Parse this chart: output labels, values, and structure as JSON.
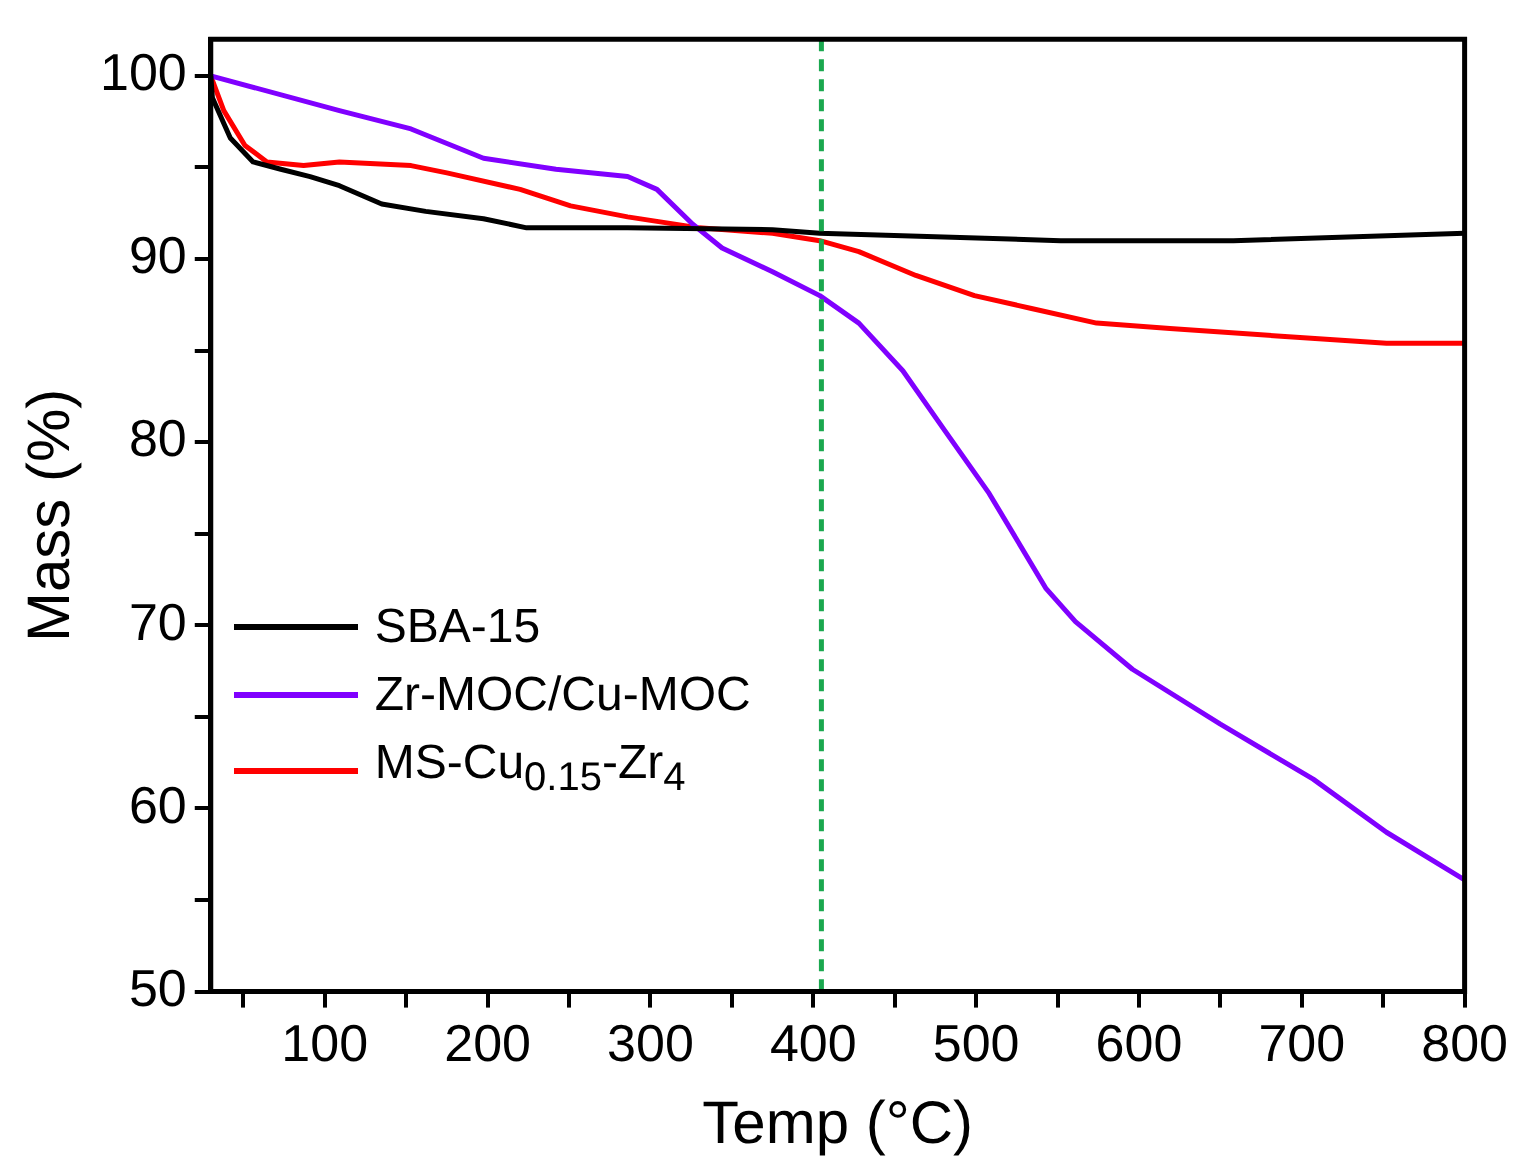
{
  "chart_data": {
    "type": "line",
    "xlabel": "Temp (°C)",
    "ylabel": "Mass (%)",
    "x": [
      30,
      38,
      51,
      64.5,
      87,
      109,
      131,
      153,
      175,
      220,
      251,
      286,
      330,
      375,
      404,
      428,
      463,
      499,
      534,
      574,
      619,
      685,
      752,
      800
    ],
    "series": [
      {
        "name": "SBA-15",
        "color": "#000000",
        "x": [
          30,
          31,
          42,
          56,
          73,
          91,
          109,
          135,
          162,
          197.5,
          224,
          286,
          375,
          404,
          552,
          658,
          800
        ],
        "values": [
          100,
          98.8,
          96.6,
          95.3,
          94.9,
          94.5,
          94.0,
          93.0,
          92.6,
          92.2,
          91.7,
          91.7,
          91.6,
          91.4,
          91.0,
          91.0,
          91.4
        ]
      },
      {
        "name": "Zr-MOC/Cu-MOC",
        "color": "#8000ff",
        "x": [
          30,
          109,
          153,
          197.5,
          242,
          286,
          304,
          326,
          344,
          375,
          404,
          428,
          455,
          481,
          508,
          543,
          561,
          596,
          650,
          707,
          752,
          800
        ],
        "values": [
          100,
          98.1,
          97.1,
          95.5,
          94.9,
          94.5,
          93.8,
          91.9,
          90.6,
          89.3,
          88.0,
          86.5,
          83.9,
          80.6,
          77.2,
          72.0,
          70.2,
          67.6,
          64.6,
          61.6,
          58.7,
          56.1
        ]
      },
      {
        "name": "MS-Cu$_{0.15}$-Zr$_{4}$",
        "color": "#ff0000",
        "values": [
          100,
          98.1,
          96.2,
          95.3,
          95.1,
          95.3,
          95.2,
          95.1,
          94.7,
          93.8,
          92.9,
          92.3,
          91.7,
          91.4,
          91.0,
          90.4,
          89.1,
          88.0,
          87.3,
          86.5,
          86.2,
          85.8,
          85.4,
          85.4
        ]
      }
    ],
    "xlim": [
      30,
      800
    ],
    "xticks": [
      {
        "value": 50,
        "label": null
      },
      100,
      {
        "value": 150,
        "label": null
      },
      200,
      {
        "value": 250,
        "label": null
      },
      300,
      {
        "value": 350,
        "label": null
      },
      400,
      {
        "value": 450,
        "label": null
      },
      500,
      {
        "value": 550,
        "label": null
      },
      600,
      {
        "value": 650,
        "label": null
      },
      700,
      {
        "value": 750,
        "label": null
      },
      800
    ],
    "ylim": [
      50,
      102
    ],
    "yticks": [
      50,
      {
        "value": 55,
        "label": null
      },
      60,
      {
        "value": 65,
        "label": null
      },
      70,
      {
        "value": 75,
        "label": null
      },
      80,
      {
        "value": 85,
        "label": null
      },
      90,
      {
        "value": 95,
        "label": null
      },
      100
    ],
    "ref_lines": [
      {
        "axis": "x",
        "value": 405,
        "color": "#1aa84f",
        "line_style": "dashed"
      }
    ],
    "grid": false,
    "legend": "bottom left",
    "marker": "none",
    "line_style": "solid"
  }
}
